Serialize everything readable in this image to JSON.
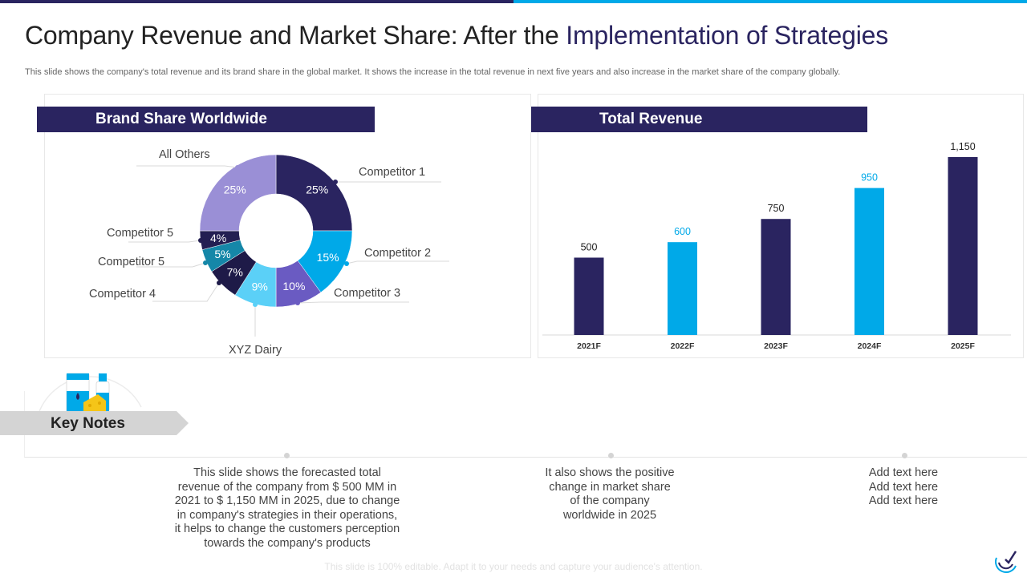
{
  "header": {
    "title_main": "Company Revenue and Market Share: After the",
    "title_accent": "Implementation of Strategies",
    "subtitle": "This slide shows the company's total revenue and its brand share in the global market. It shows the increase in the total revenue in next five years and also increase in the market share of the company globally."
  },
  "colors": {
    "navy": "#2a2460",
    "cyan": "#00a9e8",
    "lavender": "#9a8fd6",
    "purple": "#6a5bc2",
    "teal": "#1587a8",
    "light_blue": "#5bd0f7"
  },
  "chart_data": [
    {
      "type": "pie",
      "title": "Brand Share Worldwide",
      "slices": [
        {
          "label": "Competitor 1",
          "value": 25,
          "display": "25%",
          "color": "#2a2460"
        },
        {
          "label": "Competitor 2",
          "value": 15,
          "display": "15%",
          "color": "#00a9e8"
        },
        {
          "label": "Competitor 3",
          "value": 10,
          "display": "10%",
          "color": "#6a5bc2"
        },
        {
          "label": "XYZ Dairy",
          "value": 9,
          "display": "9%",
          "color": "#5bd0f7"
        },
        {
          "label": "Competitor 4",
          "value": 7,
          "display": "7%",
          "color": "#1e1a48"
        },
        {
          "label": "Competitor 5",
          "value": 5,
          "display": "5%",
          "color": "#1587a8"
        },
        {
          "label": "Competitor 5",
          "value": 4,
          "display": "4%",
          "color": "#231f52"
        },
        {
          "label": "All Others",
          "value": 25,
          "display": "25%",
          "color": "#9a8fd6"
        }
      ]
    },
    {
      "type": "bar",
      "title": "Total Revenue",
      "categories": [
        "2021F",
        "2022F",
        "2023F",
        "2024F",
        "2025F"
      ],
      "values": [
        500,
        600,
        750,
        950,
        1150
      ],
      "value_labels": [
        "500",
        "600",
        "750",
        "950",
        "1,150"
      ],
      "colors": [
        "#2a2460",
        "#00a9e8",
        "#2a2460",
        "#00a9e8",
        "#2a2460"
      ],
      "ylim": [
        0,
        1150
      ]
    }
  ],
  "key_notes": {
    "label": "Key Notes",
    "notes": [
      [
        "This slide shows the forecasted total",
        "revenue of the company from $ 500 MM in",
        "2021 to $ 1,150 MM in 2025, due to change",
        "in company's strategies in their operations,",
        "it helps to change the customers perception",
        "towards the company's products"
      ],
      [
        "It also shows the positive",
        "change in market share",
        "of the company",
        "worldwide in 2025"
      ],
      [
        "Add text here",
        "Add text here",
        "Add text here"
      ]
    ]
  },
  "footer": {
    "text": "This slide is 100% editable. Adapt it to your needs and capture your audience's attention."
  }
}
